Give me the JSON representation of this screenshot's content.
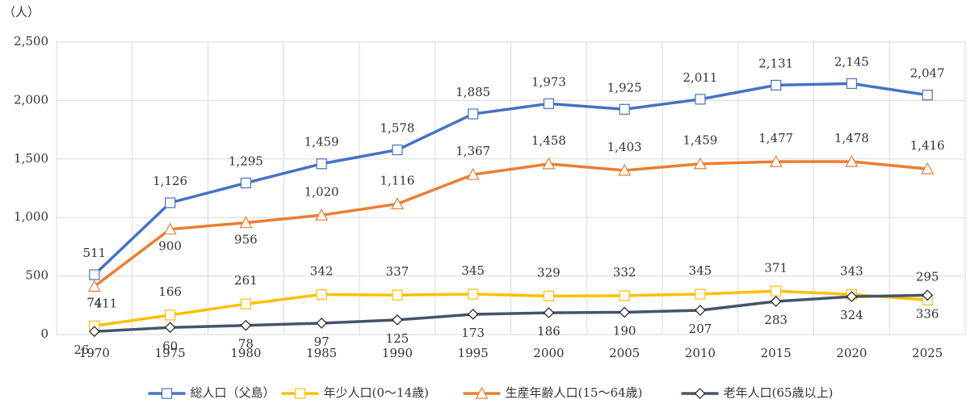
{
  "chart_data": {
    "type": "line",
    "y_unit_label": "（人）",
    "categories": [
      "1970",
      "1975",
      "1980",
      "1985",
      "1990",
      "1995",
      "2000",
      "2005",
      "2010",
      "2015",
      "2020",
      "2025"
    ],
    "series": [
      {
        "name": "総人口（父島）",
        "color": "#4472c4",
        "marker": "square",
        "values": [
          511,
          1126,
          1295,
          1459,
          1578,
          1885,
          1973,
          1925,
          2011,
          2131,
          2145,
          2047
        ],
        "value_labels": [
          "511",
          "1,126",
          "1,295",
          "1,459",
          "1,578",
          "1,885",
          "1,973",
          "1,925",
          "2,011",
          "2,131",
          "2,145",
          "2,047"
        ]
      },
      {
        "name": "年少人口(0～14歳)",
        "color": "#ffc000",
        "marker": "square",
        "values": [
          74,
          166,
          261,
          342,
          337,
          345,
          329,
          332,
          345,
          371,
          343,
          295
        ]
      },
      {
        "name": "生産年齢人口(15～64歳)",
        "color": "#ed7d31",
        "marker": "triangle",
        "values": [
          411,
          900,
          956,
          1020,
          1116,
          1367,
          1458,
          1403,
          1459,
          1477,
          1478,
          1416
        ],
        "value_labels": [
          "411",
          "900",
          "956",
          "1,020",
          "1,116",
          "1,367",
          "1,458",
          "1,403",
          "1,459",
          "1,477",
          "1,478",
          "1,416"
        ]
      },
      {
        "name": "老年人口(65歳以上)",
        "color": "#44546a",
        "marker": "diamond",
        "values": [
          26,
          60,
          78,
          97,
          125,
          173,
          186,
          190,
          207,
          283,
          324,
          336
        ]
      }
    ],
    "ylim": [
      0,
      2500
    ],
    "yticks": [
      0,
      500,
      {
        "value": 1000,
        "label": "1,000"
      },
      {
        "value": 1500,
        "label": "1,500"
      },
      {
        "value": 2000,
        "label": "2,000"
      },
      {
        "value": 2500,
        "label": "2,500"
      }
    ],
    "grid": true,
    "legend": "bottom"
  }
}
